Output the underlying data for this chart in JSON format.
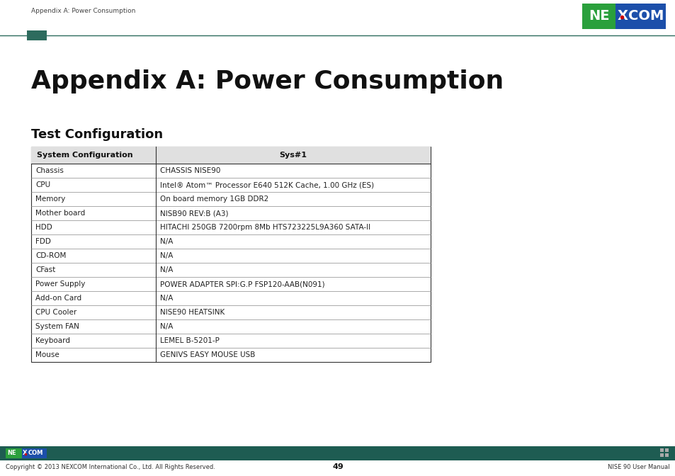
{
  "page_title": "Appendix A: Power Consumption",
  "section_title": "Test Configuration",
  "header_text": "Appendix A: Power Consumption",
  "bg_color": "#ffffff",
  "dark_green": "#2d6b5e",
  "header_col1": "System Configuration",
  "header_col2": "Sys#1",
  "table_rows": [
    [
      "Chassis",
      "CHASSIS NISE90"
    ],
    [
      "CPU",
      "Intel® Atom™ Processor E640 512K Cache, 1.00 GHz (ES)"
    ],
    [
      "Memory",
      "On board memory 1GB DDR2"
    ],
    [
      "Mother board",
      "NISB90 REV:B (A3)"
    ],
    [
      "HDD",
      "HITACHI 250GB 7200rpm 8Mb HTS723225L9A360 SATA-II"
    ],
    [
      "FDD",
      "N/A"
    ],
    [
      "CD-ROM",
      "N/A"
    ],
    [
      "CFast",
      "N/A"
    ],
    [
      "Power Supply",
      "POWER ADAPTER SPI:G.P FSP120-AAB(N091)"
    ],
    [
      "Add-on Card",
      "N/A"
    ],
    [
      "CPU Cooler",
      "NISE90 HEATSINK"
    ],
    [
      "System FAN",
      "N/A"
    ],
    [
      "Keyboard",
      "LEMEL B-5201-P"
    ],
    [
      "Mouse",
      "GENIVS EASY MOUSE USB"
    ]
  ],
  "footer_copyright": "Copyright © 2013 NEXCOM International Co., Ltd. All Rights Reserved.",
  "footer_page": "49",
  "footer_manual": "NISE 90 User Manual",
  "nexcom_green_logo": "#2aa03c",
  "nexcom_blue_logo": "#1c4faa",
  "nexcom_bar": "#1e5c52",
  "logo_x_color": "#cc0000"
}
